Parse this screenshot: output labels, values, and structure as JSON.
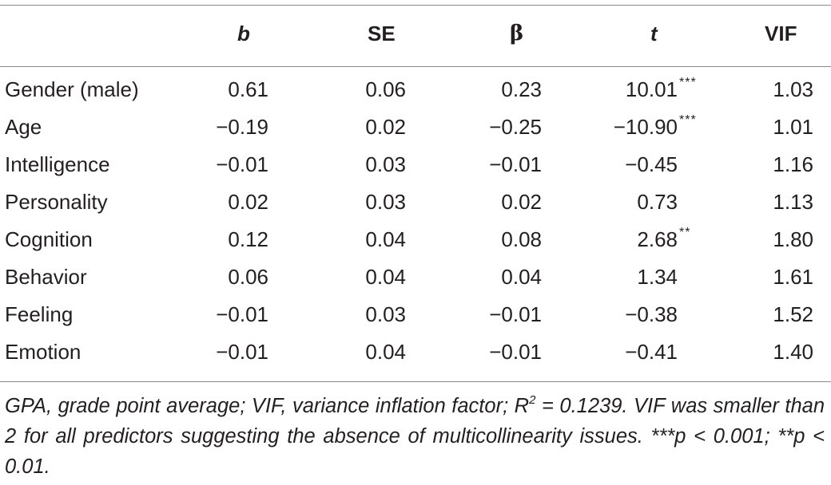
{
  "table": {
    "headers": {
      "b": "b",
      "se": "SE",
      "beta": "β",
      "t": "t",
      "vif": "VIF"
    },
    "rows": [
      {
        "label": "Gender (male)",
        "b": "0.61",
        "se": "0.06",
        "beta": "0.23",
        "t": "10.01",
        "sig": "***",
        "vif": "1.03"
      },
      {
        "label": "Age",
        "b": "−0.19",
        "se": "0.02",
        "beta": "−0.25",
        "t": "−10.90",
        "sig": "***",
        "vif": "1.01"
      },
      {
        "label": "Intelligence",
        "b": "−0.01",
        "se": "0.03",
        "beta": "−0.01",
        "t": "−0.45",
        "sig": "",
        "vif": "1.16"
      },
      {
        "label": "Personality",
        "b": "0.02",
        "se": "0.03",
        "beta": "0.02",
        "t": "0.73",
        "sig": "",
        "vif": "1.13"
      },
      {
        "label": "Cognition",
        "b": "0.12",
        "se": "0.04",
        "beta": "0.08",
        "t": "2.68",
        "sig": "**",
        "vif": "1.80"
      },
      {
        "label": "Behavior",
        "b": "0.06",
        "se": "0.04",
        "beta": "0.04",
        "t": "1.34",
        "sig": "",
        "vif": "1.61"
      },
      {
        "label": "Feeling",
        "b": "−0.01",
        "se": "0.03",
        "beta": "−0.01",
        "t": "−0.38",
        "sig": "",
        "vif": "1.52"
      },
      {
        "label": "Emotion",
        "b": "−0.01",
        "se": "0.04",
        "beta": "−0.01",
        "t": "−0.41",
        "sig": "",
        "vif": "1.40"
      }
    ]
  },
  "footnote": {
    "part1": "GPA, grade point average; VIF, variance inflation factor; R",
    "sup": "2",
    "part2": " = 0.1239. VIF was smaller than 2 for all predictors suggesting the absence of multicollinearity issues. ***p < 0.001; **p < 0.01."
  }
}
